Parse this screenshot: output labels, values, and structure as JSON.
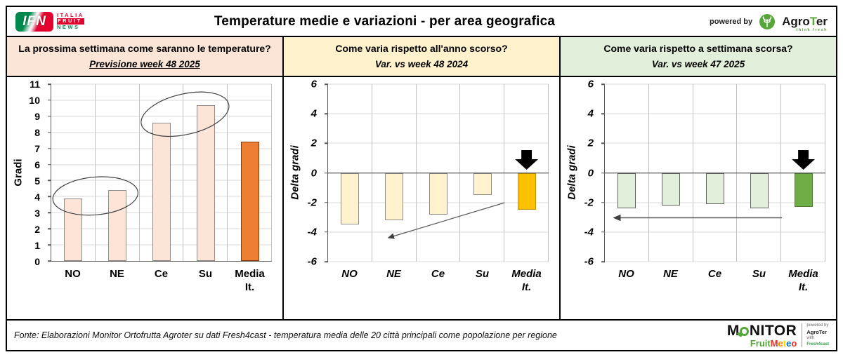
{
  "header": {
    "ifn": {
      "abbr": "IFN",
      "italia": "ITALIA",
      "fruit": "FRUIT",
      "news": "NEWS"
    },
    "title": "Temperature medie e variazioni - per area geografica",
    "powered_by": "powered by",
    "agroter": {
      "agro": "Agro",
      "t": "T",
      "er": "er",
      "tagline": "think fresh"
    }
  },
  "chart_data": [
    {
      "type": "bar",
      "question": "La prossima settimana come saranno le temperature?",
      "subtitle": "Previsione week 48 2025",
      "ylabel": "Gradi",
      "categories": [
        "NO",
        "NE",
        "Ce",
        "Su",
        "Media\nIt."
      ],
      "values": [
        3.9,
        4.4,
        8.6,
        9.7,
        7.4
      ],
      "ylim": [
        0,
        11
      ],
      "ytick_step": 1,
      "grid": true,
      "highlight_index": 4,
      "bar_color": "#fce4d6",
      "bar_border": "#8c8c8c",
      "highlight_color": "#ed7d31",
      "highlight_border": "#843c0c",
      "header_bg": "#fbe5d6",
      "annotations": [
        "ellipse circling NO and NE bar tops",
        "ellipse circling Ce and Su bar tops"
      ]
    },
    {
      "type": "bar",
      "question": "Come varia rispetto all'anno scorso?",
      "subtitle": "Var. vs week 48 2024",
      "ylabel": "Delta gradi",
      "categories": [
        "NO",
        "NE",
        "Ce",
        "Su",
        "Media\nIt."
      ],
      "values": [
        -3.5,
        -3.2,
        -2.8,
        -1.5,
        -2.5
      ],
      "ylim": [
        -6,
        6
      ],
      "ytick_step": 2,
      "grid": true,
      "highlight_index": 4,
      "bar_color": "#fff2cc",
      "bar_border": "#8c8c8c",
      "highlight_color": "#ffc000",
      "highlight_border": "#bf9000",
      "header_bg": "#fff2cc",
      "annotations": [
        "thick black down arrow above Media It. bar",
        "thin trend arrow pointing down-left from Su toward NO"
      ]
    },
    {
      "type": "bar",
      "question": "Come varia rispetto a settimana scorsa?",
      "subtitle": "Var. vs week 47 2025",
      "ylabel": "Delta gradi",
      "categories": [
        "NO",
        "NE",
        "Ce",
        "Su",
        "Media\nIt."
      ],
      "values": [
        -2.4,
        -2.2,
        -2.1,
        -2.4,
        -2.3
      ],
      "ylim": [
        -6,
        6
      ],
      "ytick_step": 2,
      "grid": true,
      "highlight_index": 4,
      "bar_color": "#e2efda",
      "bar_border": "#616161",
      "highlight_color": "#70ad47",
      "highlight_border": "#507e32",
      "header_bg": "#e2efda",
      "annotations": [
        "thick black down arrow above Media It. bar",
        "thin horizontal arrow pointing left from Su toward NO"
      ]
    }
  ],
  "footer": {
    "fonte": "Fonte: Elaborazioni Monitor Ortofrutta Agroter su dati Fresh4cast - temperatura media delle 20 città principali come popolazione per regione",
    "monitor": {
      "m": "M",
      "nitor": "NITOR",
      "fruit": "Fruit",
      "meteo": "Meteo",
      "meteo_colors": [
        "#e53228",
        "#f18700",
        "#ffd500",
        "#0072bc",
        "#e53228"
      ],
      "powered_by": "powered by",
      "agroter": "AgroTer",
      "with": "with",
      "fresh4cast": "Fresh4cast"
    }
  }
}
